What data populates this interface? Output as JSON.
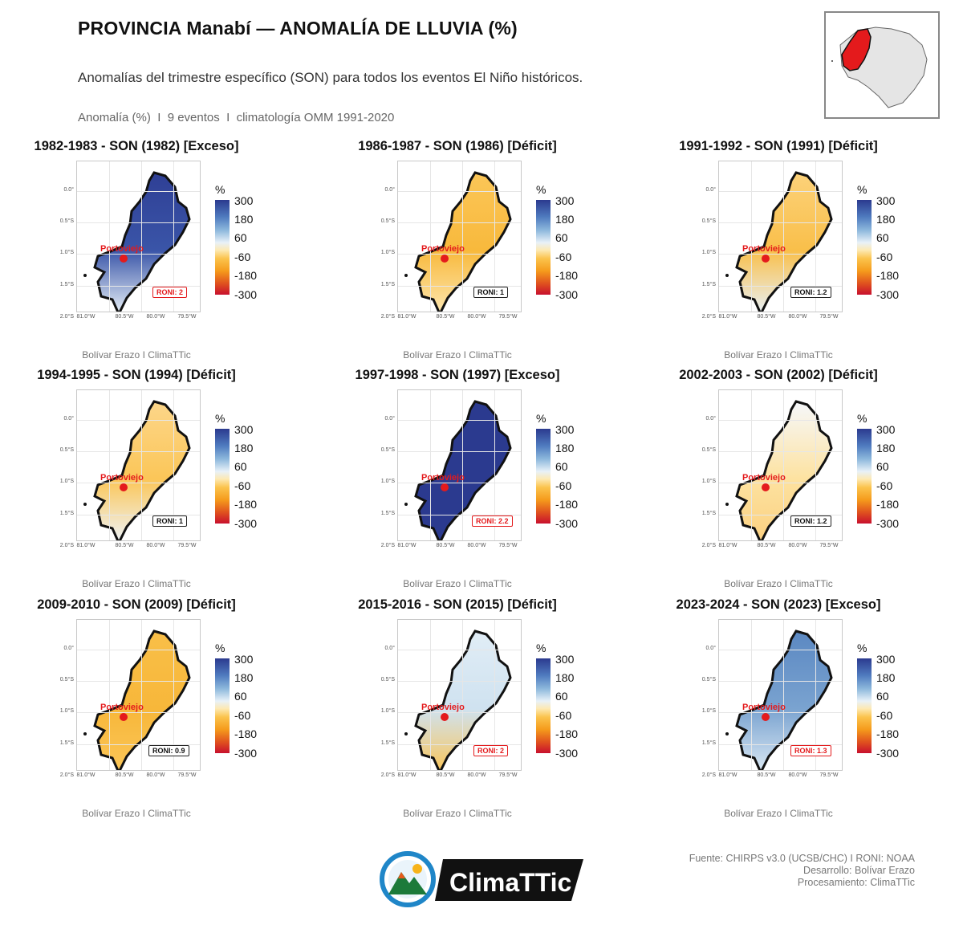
{
  "header": {
    "title": "PROVINCIA Manabí — ANOMALÍA DE LLUVIA (%)",
    "subtitle": "Anomalías del trimestre específico (SON) para todos los eventos El Niño históricos.",
    "meta": "Anomalía (%)  I  9 eventos  I  climatología OMM 1991-2020"
  },
  "map_common": {
    "y_ticks": [
      "0.0°",
      "0.5°S",
      "1.0°S",
      "1.5°S",
      "2.0°S"
    ],
    "x_ticks": [
      "81.0°W",
      "80.5°W",
      "80.0°W",
      "79.5°W"
    ],
    "legend_unit": "%",
    "legend_labels": [
      "300",
      "180",
      "60",
      "-60",
      "-180",
      "-300"
    ],
    "city": "Portoviejo",
    "credit": "Bolívar Erazo I ClimaTTic",
    "colors": {
      "excess_strong": "#2b3a8f",
      "excess_mid": "#4f7bbf",
      "neutral": "#f2f6fb",
      "deficit_mid": "#fbc34c",
      "deficit_strong": "#c8102e",
      "city": "#e41a1c"
    }
  },
  "panels": [
    {
      "title": "1982-1983 - SON (1982) [Exceso]",
      "roni": "RONI: 2",
      "status": "Exceso"
    },
    {
      "title": "1986-1987 - SON (1986) [Déficit]",
      "roni": "RONI: 1",
      "status": "Déficit"
    },
    {
      "title": "1991-1992 - SON (1991) [Déficit]",
      "roni": "RONI: 1.2",
      "status": "Déficit"
    },
    {
      "title": "1994-1995 - SON (1994) [Déficit]",
      "roni": "RONI: 1",
      "status": "Déficit"
    },
    {
      "title": "1997-1998 - SON (1997) [Exceso]",
      "roni": "RONI: 2.2",
      "status": "Exceso"
    },
    {
      "title": "2002-2003 - SON (2002) [Déficit]",
      "roni": "RONI: 1.2",
      "status": "Déficit"
    },
    {
      "title": "2009-2010 - SON (2009) [Déficit]",
      "roni": "RONI: 0.9",
      "status": "Déficit"
    },
    {
      "title": "2015-2016 - SON (2015) [Déficit]",
      "roni": "RONI: 2",
      "status": "Déficit"
    },
    {
      "title": "2023-2024 - SON (2023) [Exceso]",
      "roni": "RONI: 1.3",
      "status": "Exceso"
    }
  ],
  "footer": {
    "source": "Fuente: CHIRPS v3.0 (UCSB/CHC) I RONI: NOAA",
    "development": "Desarrollo: Bolívar Erazo",
    "processing": "Procesamiento: ClimaTTic",
    "logo_text": "ClimaTTic"
  }
}
